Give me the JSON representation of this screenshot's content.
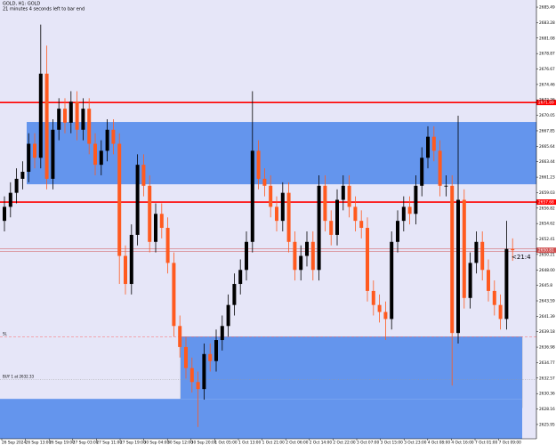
{
  "chart_data": {
    "type": "candlestick",
    "title": "GOLD, H1: GOLD",
    "subtitle": "21 minutes 4 seconds left to bar end",
    "countdown": "<21:4",
    "background": "#e6e6f8",
    "up_color": "#000000",
    "down_color": "#ff5a1f",
    "zone_color": "#6495ed",
    "xlabels": [
      "26 Sep 2024",
      "26 Sep 13:00",
      "26 Sep 19:00",
      "27 Sep 03:00",
      "27 Sep 11:00",
      "27 Sep 19:00",
      "30 Sep 04:00",
      "30 Sep 12:00",
      "30 Sep 20:00",
      "1 Oct 05:00",
      "1 Oct 13:00",
      "1 Oct 21:00",
      "2 Oct 06:00",
      "2 Oct 14:00",
      "2 Oct 22:00",
      "3 Oct 07:00",
      "3 Oct 15:00",
      "3 Oct 23:00",
      "4 Oct 08:00",
      "4 Oct 16:00",
      "7 Oct 01:00",
      "7 Oct 09:00"
    ],
    "open": [
      2655,
      2657,
      2659,
      2661,
      2662,
      2666,
      2664,
      2676,
      2661,
      2668,
      2671,
      2669,
      2672,
      2668,
      2671,
      2666,
      2663,
      2665,
      2668,
      2666,
      2650,
      2646,
      2653,
      2663,
      2660,
      2652,
      2656,
      2654,
      2649,
      2640,
      2637,
      2634,
      2632,
      2631,
      2636,
      2635,
      2638,
      2640,
      2643,
      2646,
      2648,
      2652,
      2665,
      2661,
      2660,
      2657,
      2655,
      2659,
      2652,
      2648,
      2650,
      2652,
      2648,
      2660,
      2655,
      2653,
      2658,
      2660,
      2657,
      2655,
      2654,
      2645,
      2643,
      2642,
      2641,
      2652,
      2655,
      2657,
      2656,
      2660,
      2664,
      2667,
      2665,
      2660,
      2660,
      2639,
      2658,
      2644,
      2649,
      2652,
      2648,
      2645,
      2643,
      2641,
      2651
    ],
    "high": [
      2658.5,
      2660.5,
      2662.5,
      2663.5,
      2667.5,
      2667.5,
      2683,
      2680,
      2669.5,
      2672.5,
      2672.5,
      2673.5,
      2673.5,
      2672.5,
      2672.5,
      2667.5,
      2666.5,
      2669.5,
      2669.5,
      2667.5,
      2651.5,
      2654.5,
      2664.5,
      2664.5,
      2661.5,
      2657.5,
      2657.5,
      2655.5,
      2650.5,
      2641.5,
      2638.5,
      2635.5,
      2633.5,
      2637.5,
      2637.5,
      2639.5,
      2641.5,
      2644.5,
      2647.5,
      2649.5,
      2653.5,
      2673.5,
      2666.5,
      2662.5,
      2661.5,
      2658.5,
      2660.5,
      2660.5,
      2653.5,
      2651.5,
      2653.5,
      2653.5,
      2661.5,
      2661.5,
      2656.5,
      2659.5,
      2661.5,
      2661.5,
      2658.5,
      2656.5,
      2655.5,
      2646.5,
      2644.5,
      2643.5,
      2653.5,
      2656.5,
      2658.5,
      2658.5,
      2661.5,
      2665.5,
      2668.5,
      2668.5,
      2666.5,
      2661.5,
      2661.5,
      2670,
      2659.5,
      2650.5,
      2653.5,
      2653.5,
      2649.5,
      2646.5,
      2644.5,
      2655,
      2652.5
    ],
    "low": [
      2653.5,
      2655.5,
      2657.5,
      2659.5,
      2660.5,
      2662.5,
      2662.5,
      2659.5,
      2659.5,
      2666.5,
      2667.5,
      2667.5,
      2666.5,
      2666.5,
      2664.5,
      2661.5,
      2661.5,
      2663.5,
      2664.5,
      2646,
      2644.5,
      2644.5,
      2651.5,
      2658.5,
      2650.5,
      2650.5,
      2652.5,
      2647.5,
      2638.5,
      2635.5,
      2632.5,
      2630.5,
      2625.6,
      2629.5,
      2633.5,
      2633.5,
      2636.5,
      2638.5,
      2641.5,
      2644.5,
      2646.5,
      2650.5,
      2659.5,
      2658.5,
      2655.5,
      2653.5,
      2653.5,
      2650.5,
      2646.5,
      2646.5,
      2648.5,
      2646.5,
      2646.5,
      2653.5,
      2651.5,
      2651.5,
      2656.5,
      2655.5,
      2653.5,
      2652.5,
      2643.5,
      2641.5,
      2640.5,
      2638,
      2639.5,
      2650.5,
      2653.5,
      2654.5,
      2654.5,
      2658.5,
      2662.5,
      2663.5,
      2658.5,
      2658.5,
      2631.5,
      2637.5,
      2642.5,
      2642.5,
      2647.5,
      2646.5,
      2643.5,
      2641.5,
      2639.5,
      2639.5,
      2649.3
    ],
    "close": [
      2657,
      2659,
      2661,
      2662,
      2666,
      2664,
      2676,
      2661,
      2668,
      2671,
      2669,
      2672,
      2668,
      2671,
      2666,
      2663,
      2665,
      2668,
      2666,
      2650,
      2646,
      2653,
      2663,
      2660,
      2652,
      2656,
      2654,
      2649,
      2640,
      2637,
      2634,
      2632,
      2631,
      2636,
      2635,
      2638,
      2640,
      2643,
      2646,
      2648,
      2652,
      2665,
      2661,
      2660,
      2657,
      2655,
      2659,
      2652,
      2648,
      2650,
      2652,
      2648,
      2660,
      2655,
      2653,
      2658,
      2660,
      2657,
      2655,
      2654,
      2645,
      2643,
      2642,
      2641,
      2652,
      2655,
      2657,
      2656,
      2660,
      2664,
      2667,
      2665,
      2660,
      2660,
      2639,
      2658,
      2644,
      2649,
      2652,
      2648,
      2645,
      2643,
      2641,
      2651,
      2650.81
    ],
    "ylim": [
      2623.91,
      2686.51
    ],
    "yticks": [
      2685.49,
      2683.28,
      2681.08,
      2678.87,
      2676.67,
      2674.46,
      2672.26,
      2670.05,
      2667.85,
      2665.64,
      2663.44,
      2661.23,
      2659.03,
      2656.82,
      2654.62,
      2652.41,
      2650.21,
      {
        "value": 2648,
        "label": "2648.00"
      },
      2645.8,
      2643.59,
      2641.39,
      2639.18,
      2636.98,
      2634.77,
      2632.57,
      2630.36,
      2628.16,
      2625.95
    ],
    "zones": [
      {
        "top": 2669.11,
        "bottom": 2660.22
      },
      {
        "top": 2638.47,
        "bottom": 2629.6
      },
      {
        "top": 2629.6,
        "bottom": 2623.91
      }
    ],
    "levels": [
      {
        "value": 2671.89,
        "color": "#ff0000"
      },
      {
        "value": 2657.68,
        "color": "#ff0000"
      }
    ],
    "orders": [
      {
        "label": "SL",
        "value": 2638.47
      },
      {
        "label": "BUY 1 at 2632.33",
        "value": 2632.33
      }
    ],
    "current_price": 2650.81
  }
}
